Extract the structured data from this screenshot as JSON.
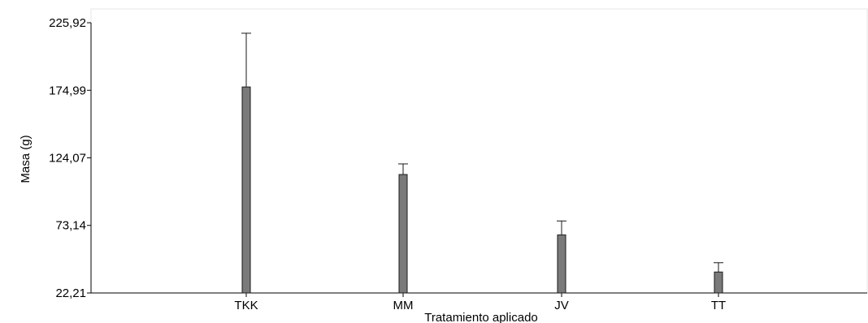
{
  "chart_data": {
    "type": "bar",
    "title": "",
    "xlabel": "Tratamiento aplicado",
    "ylabel": "Masa (g)",
    "categories": [
      "TKK",
      "MM",
      "JV",
      "TT"
    ],
    "values": [
      177.5,
      111.5,
      66.0,
      38.0
    ],
    "error_upper": [
      218.0,
      119.5,
      76.5,
      45.0
    ],
    "yticks": [
      "22,21",
      "73,14",
      "124,07",
      "174,99",
      "225,92"
    ],
    "ytick_values": [
      22.21,
      73.14,
      124.07,
      174.99,
      225.92
    ],
    "ylim": [
      22.21,
      225.92
    ],
    "grid": false,
    "legend": "none",
    "colors": {
      "bar_fill": "#7a7a7a",
      "bar_stroke": "#1a1a1a",
      "axis": "#000000",
      "error_bar": "#1a1a1a",
      "frame": "#e6e6e6"
    }
  }
}
